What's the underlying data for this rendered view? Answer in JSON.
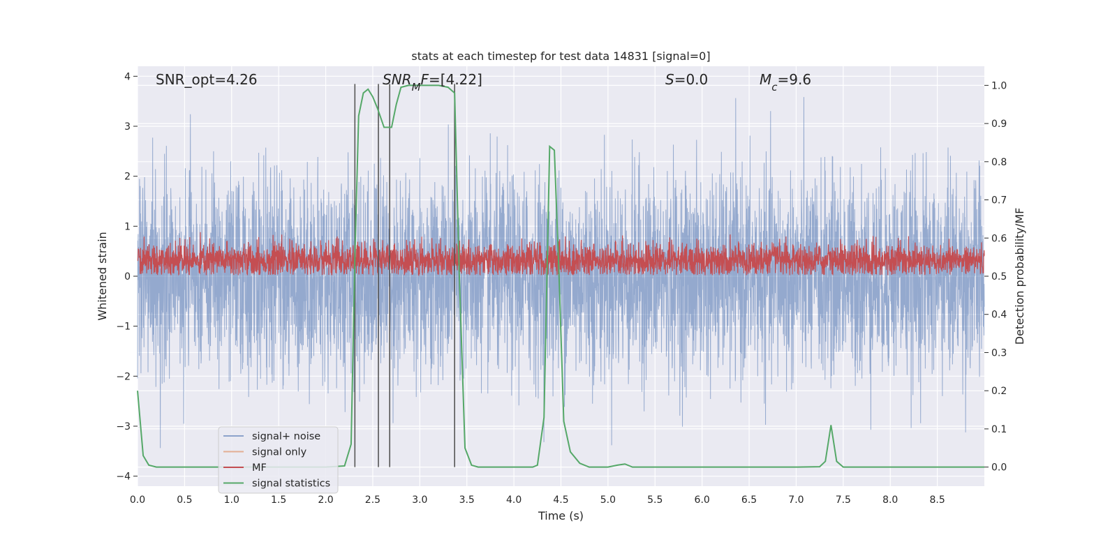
{
  "chart_data": {
    "type": "line",
    "title": "stats at each timestep for test data 14831 [signal=0]",
    "xlabel": "Time (s)",
    "ylabel": "Whitened strain",
    "y2label": "Detection probability/MF",
    "xlim": [
      0.0,
      9.0
    ],
    "ylim": [
      -4.2,
      4.2
    ],
    "y2lim": [
      -0.05,
      1.05
    ],
    "xticks": [
      "0.0",
      "0.5",
      "1.0",
      "1.5",
      "2.0",
      "2.5",
      "3.0",
      "3.5",
      "4.0",
      "4.5",
      "5.0",
      "5.5",
      "6.0",
      "6.5",
      "7.0",
      "7.5",
      "8.0",
      "8.5"
    ],
    "yticks": [
      "−4",
      "−3",
      "−2",
      "−1",
      "0",
      "1",
      "2",
      "3",
      "4"
    ],
    "y2ticks": [
      "0.0",
      "0.1",
      "0.2",
      "0.3",
      "0.4",
      "0.5",
      "0.6",
      "0.7",
      "0.8",
      "0.9",
      "1.0"
    ],
    "grid": true,
    "legend_position": "lower-left",
    "annotations": {
      "snr_opt": "SNR_opt=4.26",
      "snr_mf": "SNR_MF=[4.22]",
      "s": "S=0.0",
      "mc": "M_c=9.6"
    },
    "vertical_lines_x": [
      2.31,
      2.56,
      2.68,
      3.37
    ],
    "series": [
      {
        "name": "signal+ noise",
        "color": "#4c72b0",
        "description_values": {
          "typical_range": [
            -2.0,
            2.5
          ],
          "max_excursion": 3.6,
          "min_excursion": -3.6
        }
      },
      {
        "name": "signal only",
        "color": "#dd8452",
        "values": []
      },
      {
        "name": "MF",
        "color": "#c44e52",
        "description_values": {
          "typical_range": [
            0.05,
            0.65
          ],
          "peak": 1.0
        }
      },
      {
        "name": "signal statistics",
        "color": "#55a868",
        "axis": "right",
        "x": [
          0.0,
          0.06,
          0.12,
          0.2,
          0.5,
          1.0,
          1.5,
          2.0,
          2.2,
          2.27,
          2.31,
          2.35,
          2.4,
          2.45,
          2.5,
          2.55,
          2.62,
          2.7,
          2.75,
          2.8,
          2.88,
          3.0,
          3.2,
          3.3,
          3.37,
          3.42,
          3.48,
          3.55,
          3.62,
          3.7,
          3.8,
          4.0,
          4.2,
          4.25,
          4.32,
          4.38,
          4.43,
          4.48,
          4.53,
          4.6,
          4.7,
          4.8,
          4.9,
          5.0,
          5.1,
          5.18,
          5.26,
          5.4,
          6.0,
          6.5,
          7.0,
          7.25,
          7.31,
          7.37,
          7.43,
          7.5,
          7.6,
          8.0,
          8.5,
          9.0
        ],
        "y": [
          0.2,
          0.03,
          0.005,
          0.0,
          0.0,
          0.0,
          0.0,
          0.0,
          0.003,
          0.06,
          0.55,
          0.92,
          0.98,
          0.99,
          0.97,
          0.94,
          0.89,
          0.89,
          0.95,
          0.995,
          1.0,
          1.0,
          1.0,
          0.995,
          0.98,
          0.5,
          0.05,
          0.005,
          0.0,
          0.0,
          0.0,
          0.0,
          0.0,
          0.005,
          0.13,
          0.84,
          0.83,
          0.5,
          0.12,
          0.04,
          0.01,
          0.0,
          0.0,
          0.0,
          0.005,
          0.008,
          0.0,
          0.0,
          0.0,
          0.0,
          0.0,
          0.001,
          0.015,
          0.11,
          0.015,
          0.0,
          0.0,
          0.0,
          0.0,
          0.0
        ]
      }
    ]
  },
  "icons": {
    "legend_swatch_shape": "horizontal-line"
  }
}
